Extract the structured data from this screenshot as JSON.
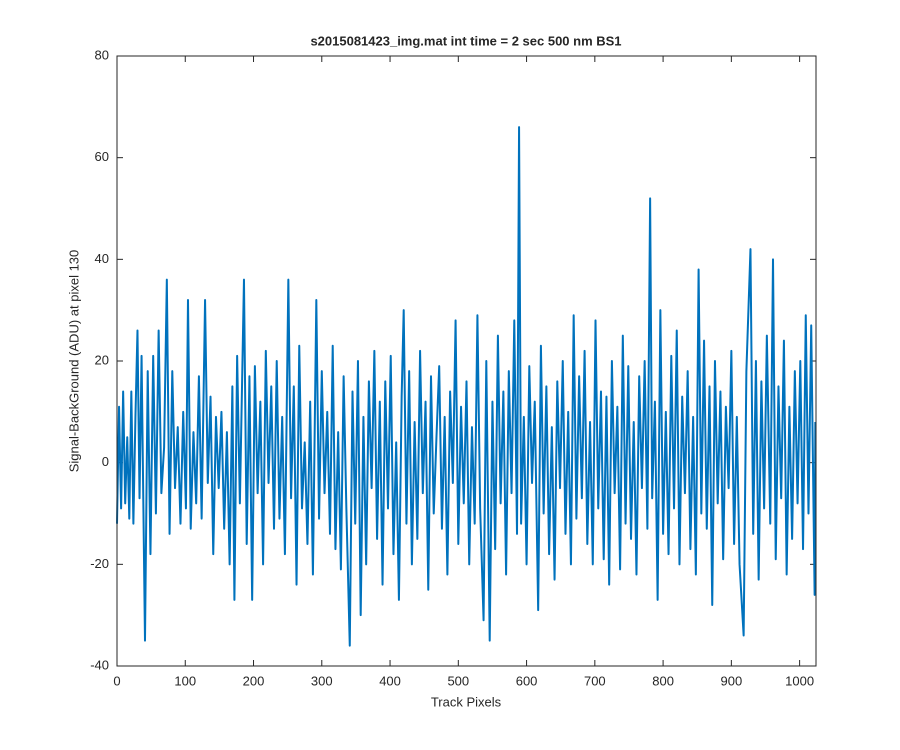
{
  "chart_data": {
    "type": "line",
    "title": "s2015081423_img.mat int time = 2 sec  500 nm BS1",
    "x_label": "Track Pixels",
    "y_label": "Signal-BackGround (ADU) at pixel 130",
    "xlim": [
      0,
      1024
    ],
    "ylim": [
      -40,
      80
    ],
    "xticks": [
      0,
      100,
      200,
      300,
      400,
      500,
      600,
      700,
      800,
      900,
      1000
    ],
    "yticks": [
      -40,
      -20,
      0,
      20,
      40,
      60,
      80
    ],
    "grid": false,
    "x": [
      0,
      3,
      6,
      9,
      12,
      15,
      18,
      21,
      24,
      27,
      30,
      33,
      36,
      41,
      45,
      49,
      53,
      57,
      61,
      65,
      69,
      73,
      77,
      81,
      85,
      89,
      93,
      97,
      101,
      104,
      108,
      112,
      116,
      120,
      124,
      129,
      133,
      137,
      141,
      145,
      149,
      153,
      157,
      161,
      165,
      169,
      172,
      176,
      180,
      186,
      190,
      194,
      198,
      202,
      206,
      210,
      214,
      218,
      222,
      226,
      230,
      234,
      238,
      242,
      246,
      251,
      255,
      259,
      263,
      267,
      271,
      275,
      279,
      283,
      287,
      292,
      296,
      300,
      304,
      308,
      312,
      316,
      320,
      324,
      328,
      332,
      336,
      341,
      345,
      349,
      353,
      357,
      361,
      365,
      369,
      373,
      377,
      381,
      385,
      389,
      393,
      397,
      401,
      405,
      409,
      413,
      417,
      420,
      424,
      428,
      432,
      436,
      440,
      444,
      448,
      452,
      456,
      460,
      464,
      468,
      472,
      476,
      480,
      484,
      488,
      492,
      496,
      500,
      504,
      508,
      512,
      516,
      520,
      524,
      528,
      532,
      537,
      541,
      546,
      550,
      554,
      558,
      562,
      566,
      570,
      574,
      578,
      582,
      586,
      589,
      592,
      596,
      600,
      604,
      608,
      612,
      617,
      621,
      625,
      629,
      633,
      637,
      641,
      645,
      649,
      653,
      657,
      661,
      665,
      669,
      673,
      677,
      681,
      685,
      689,
      693,
      697,
      701,
      705,
      709,
      713,
      717,
      721,
      725,
      729,
      733,
      737,
      741,
      745,
      749,
      753,
      757,
      761,
      765,
      769,
      773,
      777,
      781,
      784,
      788,
      792,
      796,
      800,
      804,
      808,
      812,
      816,
      820,
      824,
      828,
      832,
      836,
      840,
      844,
      848,
      852,
      856,
      860,
      864,
      868,
      872,
      876,
      880,
      884,
      888,
      892,
      896,
      900,
      904,
      908,
      912,
      918,
      922,
      928,
      932,
      936,
      940,
      944,
      948,
      952,
      957,
      961,
      965,
      969,
      973,
      977,
      981,
      985,
      989,
      993,
      997,
      1001,
      1005,
      1009,
      1013,
      1017,
      1022,
      1023
    ],
    "series": [
      {
        "color": "#0072bd",
        "values": [
          -12,
          11,
          -9,
          14,
          -8,
          5,
          -11,
          14,
          -12,
          9,
          26,
          -7,
          21,
          -35,
          18,
          -18,
          21,
          -10,
          26,
          -6,
          3,
          36,
          -14,
          18,
          -5,
          7,
          -12,
          10,
          -9,
          32,
          -13,
          6,
          -8,
          17,
          -11,
          32,
          -4,
          13,
          -18,
          9,
          -5,
          10,
          -13,
          6,
          -20,
          15,
          -27,
          21,
          -8,
          36,
          -16,
          17,
          -27,
          19,
          -6,
          12,
          -20,
          22,
          -4,
          15,
          -13,
          20,
          -11,
          9,
          -18,
          36,
          -7,
          15,
          -24,
          23,
          -9,
          4,
          -16,
          12,
          -22,
          32,
          -11,
          18,
          -6,
          10,
          -14,
          23,
          -17,
          6,
          -21,
          17,
          -9,
          -36,
          14,
          -12,
          20,
          -30,
          9,
          -20,
          16,
          -5,
          22,
          -15,
          12,
          -24,
          16,
          -9,
          21,
          -18,
          4,
          -27,
          13,
          30,
          -12,
          18,
          -20,
          8,
          -15,
          22,
          -6,
          12,
          -25,
          17,
          -10,
          5,
          19,
          -13,
          9,
          -22,
          14,
          -4,
          28,
          -16,
          11,
          -8,
          16,
          -20,
          7,
          -12,
          29,
          -9,
          -31,
          20,
          -35,
          12,
          -17,
          25,
          -8,
          14,
          -22,
          18,
          -6,
          28,
          -14,
          66,
          -12,
          9,
          -20,
          19,
          -4,
          12,
          -29,
          23,
          -10,
          15,
          -18,
          7,
          -23,
          16,
          -5,
          20,
          -14,
          10,
          -20,
          29,
          -11,
          17,
          -7,
          22,
          -16,
          8,
          -20,
          28,
          -9,
          14,
          -19,
          13,
          -24,
          20,
          -6,
          11,
          -21,
          25,
          -12,
          19,
          -15,
          8,
          -22,
          17,
          -5,
          20,
          -13,
          52,
          -7,
          12,
          -27,
          30,
          -14,
          10,
          -18,
          21,
          -9,
          26,
          -20,
          13,
          -6,
          18,
          -17,
          9,
          -22,
          38,
          -10,
          24,
          -13,
          15,
          -28,
          20,
          -8,
          14,
          -19,
          11,
          -5,
          22,
          -16,
          9,
          -20,
          -34,
          18,
          42,
          -14,
          20,
          -23,
          16,
          -9,
          25,
          -12,
          40,
          -19,
          15,
          -7,
          24,
          -22,
          11,
          -15,
          18,
          -8,
          20,
          -17,
          29,
          -10,
          27,
          -26,
          8
        ]
      }
    ]
  }
}
